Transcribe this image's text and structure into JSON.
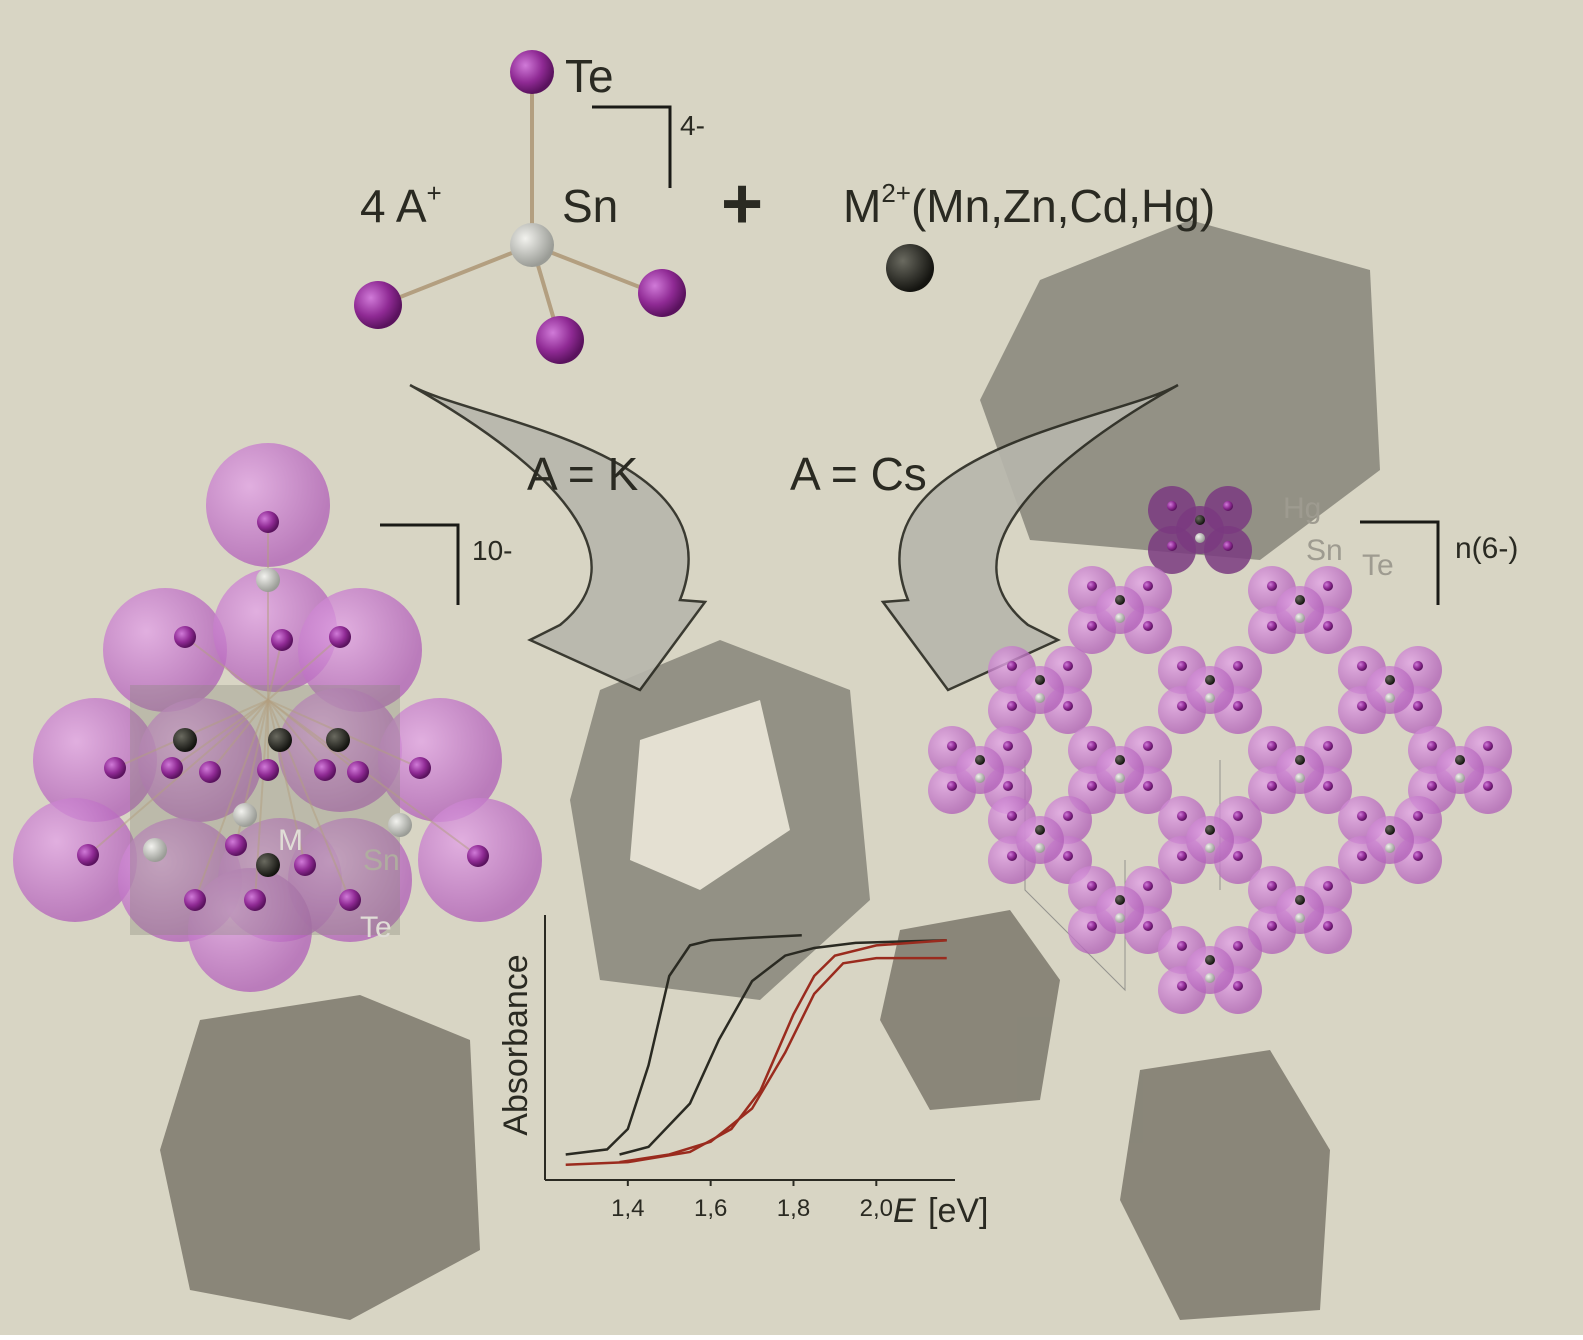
{
  "formula": {
    "te": "Te",
    "cation": "4 A",
    "cation_charge": "+",
    "sn": "Sn",
    "charge": "4-",
    "plus": "+",
    "metal": "M",
    "metal_charge": "2+",
    "metal_list": "(Mn,Zn,Cd,Hg)"
  },
  "arrows": {
    "left": "A = K",
    "right": "A = Cs"
  },
  "left_cluster": {
    "charge": "10-",
    "m": "M",
    "sn": "Sn",
    "te": "Te"
  },
  "right_lattice": {
    "hg": "Hg",
    "sn": "Sn",
    "te": "Te",
    "charge": "n(6-)"
  },
  "chart_data": {
    "type": "line",
    "y_label": "Absorbance",
    "x_label": "E",
    "x_unit": "[eV]",
    "xlim": [
      1.2,
      2.19
    ],
    "ylim": [
      0,
      1
    ],
    "xticks": [
      {
        "value": 1.4,
        "label": "1,4"
      },
      {
        "value": 1.6,
        "label": "1,6"
      },
      {
        "value": 1.8,
        "label": "1,8"
      },
      {
        "value": 2.0,
        "label": "2,0"
      }
    ],
    "series": [
      {
        "color": "#2a2a22",
        "x": [
          1.25,
          1.35,
          1.4,
          1.45,
          1.5,
          1.55,
          1.6,
          1.7,
          1.82
        ],
        "values": [
          0.1,
          0.12,
          0.2,
          0.45,
          0.8,
          0.92,
          0.94,
          0.95,
          0.96
        ]
      },
      {
        "color": "#2a2a22",
        "x": [
          1.38,
          1.45,
          1.55,
          1.62,
          1.7,
          1.78,
          1.85,
          1.95,
          2.17
        ],
        "values": [
          0.1,
          0.13,
          0.3,
          0.55,
          0.78,
          0.88,
          0.91,
          0.93,
          0.94
        ]
      },
      {
        "color": "#9a2b1e",
        "x": [
          1.25,
          1.4,
          1.55,
          1.65,
          1.72,
          1.8,
          1.85,
          1.9,
          2.0,
          2.17
        ],
        "values": [
          0.06,
          0.07,
          0.11,
          0.2,
          0.35,
          0.65,
          0.8,
          0.88,
          0.92,
          0.94
        ]
      },
      {
        "color": "#9a2b1e",
        "x": [
          1.38,
          1.5,
          1.6,
          1.7,
          1.78,
          1.85,
          1.92,
          2.0,
          2.17
        ],
        "values": [
          0.07,
          0.1,
          0.15,
          0.28,
          0.5,
          0.73,
          0.85,
          0.87,
          0.87
        ]
      }
    ]
  }
}
